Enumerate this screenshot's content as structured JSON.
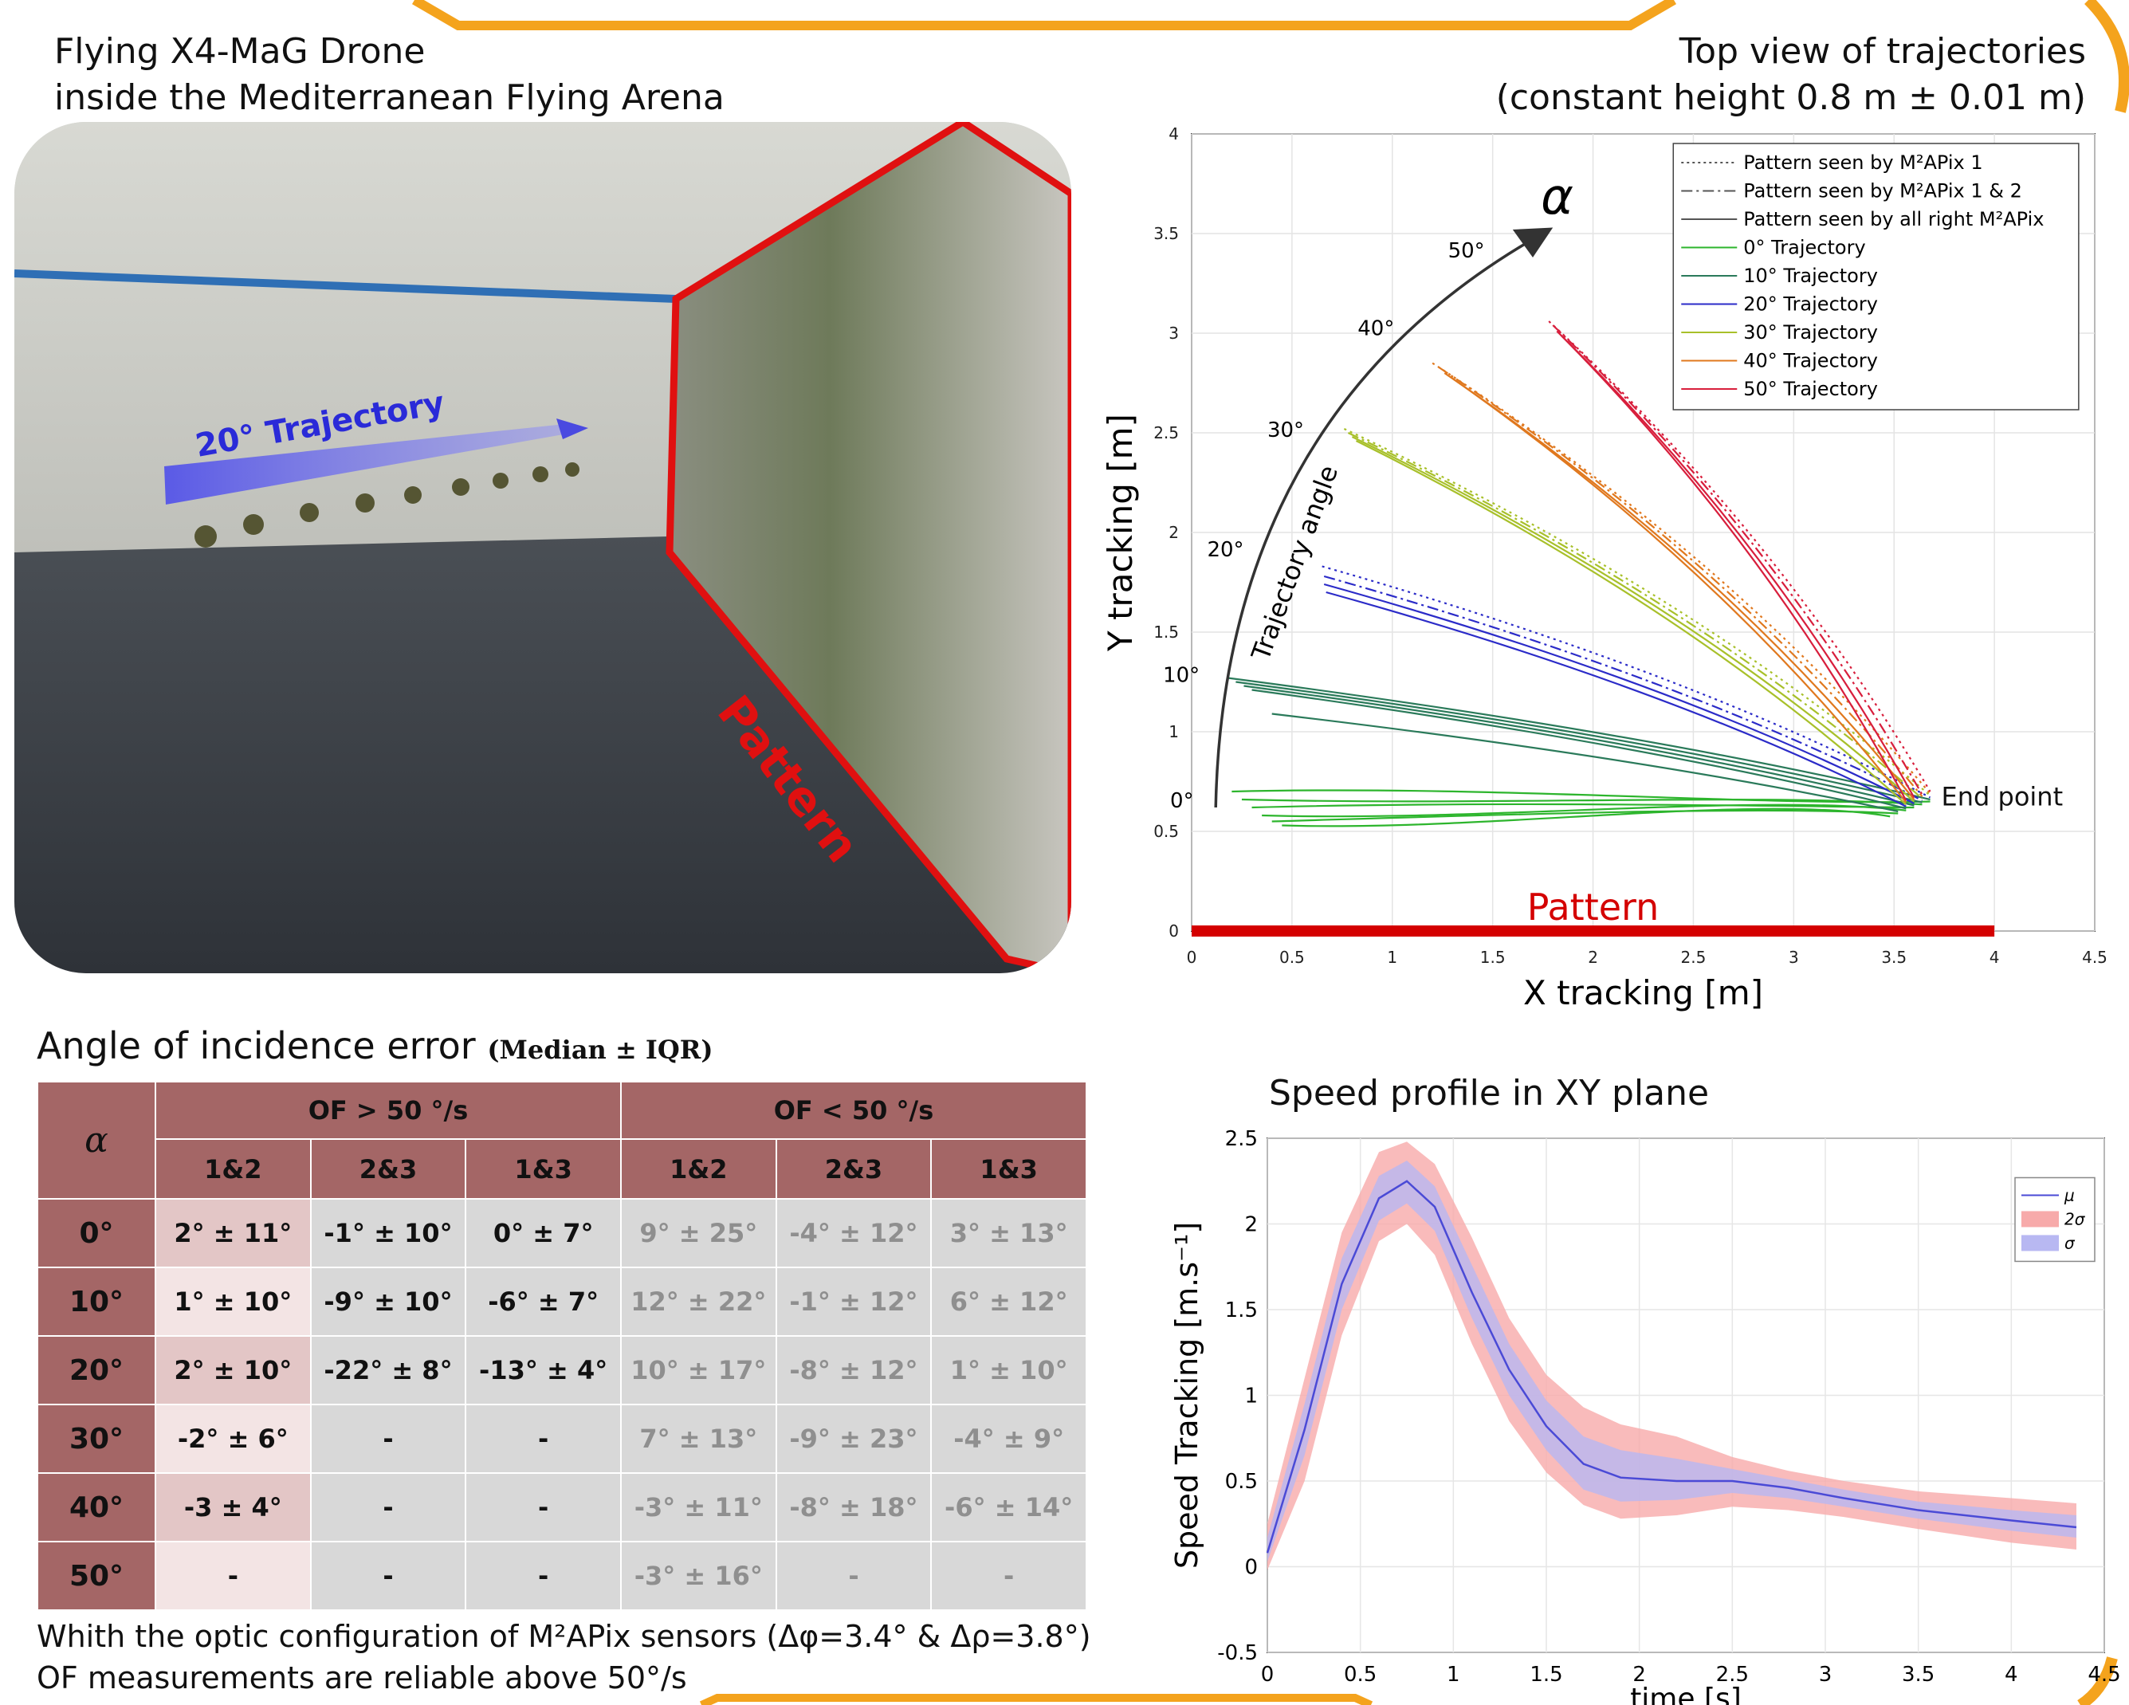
{
  "header": {
    "left_line1": "Flying X4-MaG Drone",
    "left_line2": "inside the Mediterranean Flying Arena",
    "right_line1": "Top view of trajectories",
    "right_line2": "(constant height 0.8 m ± 0.01 m)"
  },
  "photo": {
    "trajectory_label": "20° Trajectory",
    "pattern_label": "Pattern"
  },
  "table": {
    "title": "Angle of incidence error",
    "subtitle": "(Median ± IQR)",
    "alpha_header": "α",
    "group_high": "OF > 50 °/s",
    "group_low": "OF < 50 °/s",
    "columns": [
      "1&2",
      "2&3",
      "1&3",
      "1&2",
      "2&3",
      "1&3"
    ],
    "rows": [
      {
        "angle": "0°",
        "cells": [
          "2° ± 11°",
          "-1° ± 10°",
          "0° ± 7°",
          "9° ± 25°",
          "-4° ± 12°",
          "3° ± 13°"
        ]
      },
      {
        "angle": "10°",
        "cells": [
          "1° ± 10°",
          "-9° ± 10°",
          "-6° ± 7°",
          "12° ± 22°",
          "-1° ± 12°",
          "6° ± 12°"
        ]
      },
      {
        "angle": "20°",
        "cells": [
          "2° ± 10°",
          "-22° ± 8°",
          "-13° ± 4°",
          "10° ± 17°",
          "-8° ± 12°",
          "1° ± 10°"
        ]
      },
      {
        "angle": "30°",
        "cells": [
          "-2° ± 6°",
          "-",
          "-",
          "7° ± 13°",
          "-9° ± 23°",
          "-4° ± 9°"
        ]
      },
      {
        "angle": "40°",
        "cells": [
          "-3 ± 4°",
          "-",
          "-",
          "-3° ± 11°",
          "-8° ± 18°",
          "-6° ± 14°"
        ]
      },
      {
        "angle": "50°",
        "cells": [
          "-",
          "-",
          "-",
          "-3° ± 16°",
          "-",
          "-"
        ]
      }
    ],
    "note_line1": "Whith the optic configuration of M²APix sensors (Δφ=3.4°  & Δρ=3.8°)",
    "note_line2": "OF measurements are reliable above 50°/s"
  },
  "chart_data": [
    {
      "type": "line",
      "title": "Top view of trajectories",
      "subtitle": "(constant height 0.8 m ± 0.01 m)",
      "xlabel": "X tracking [m]",
      "ylabel": "Y tracking [m]",
      "xlim": [
        0,
        4.5
      ],
      "ylim": [
        0,
        4
      ],
      "xticks": [
        "0",
        "0.5",
        "1",
        "1.5",
        "2",
        "2.5",
        "3",
        "3.5",
        "4",
        "4.5"
      ],
      "yticks": [
        "0",
        "0.5",
        "1",
        "1.5",
        "2",
        "2.5",
        "3",
        "3.5",
        "4"
      ],
      "grid": true,
      "legend_position": "top-right",
      "legend": [
        {
          "label": "Pattern seen by M²APix 1",
          "style": "dotted"
        },
        {
          "label": "Pattern seen by M²APix 1 & 2",
          "style": "dashdot"
        },
        {
          "label": "Pattern seen by all right M²APix",
          "style": "solid"
        },
        {
          "label": "0° Trajectory",
          "color": "#2db52d"
        },
        {
          "label": "10° Trajectory",
          "color": "#2a7a5a"
        },
        {
          "label": "20° Trajectory",
          "color": "#2b2bc8"
        },
        {
          "label": "30° Trajectory",
          "color": "#a8c02a"
        },
        {
          "label": "40° Trajectory",
          "color": "#e0781e"
        },
        {
          "label": "50° Trajectory",
          "color": "#d81e3c"
        }
      ],
      "annotations": {
        "alpha_symbol": "α",
        "arc_label": "Trajectory angle",
        "arc_ticks": [
          "0°",
          "10°",
          "20°",
          "30°",
          "40°",
          "50°"
        ],
        "end_point": "End point",
        "pattern": "Pattern"
      },
      "pattern_bar": {
        "x": [
          0,
          4
        ],
        "y": 0
      },
      "end_point": [
        3.68,
        0.65
      ],
      "trajectories": [
        {
          "angle": "0°",
          "color": "#2db52d",
          "start_y": [
            0.7,
            0.66,
            0.62,
            0.58,
            0.55,
            0.53
          ],
          "start_x": [
            0.2,
            0.25,
            0.3,
            0.35,
            0.4,
            0.45
          ]
        },
        {
          "angle": "10°",
          "color": "#2a7a5a",
          "start_y": [
            1.27,
            1.25,
            1.23,
            1.21,
            1.09
          ],
          "start_x": [
            0.18,
            0.22,
            0.26,
            0.3,
            0.4
          ]
        },
        {
          "angle": "20°",
          "color": "#2b2bc8",
          "start_y": [
            1.83,
            1.78,
            1.74,
            1.7
          ],
          "start_x": [
            0.65,
            0.66,
            0.66,
            0.67
          ]
        },
        {
          "angle": "30°",
          "color": "#a8c02a",
          "start_y": [
            2.52,
            2.5,
            2.48,
            2.46
          ],
          "start_x": [
            0.76,
            0.78,
            0.8,
            0.82
          ]
        },
        {
          "angle": "40°",
          "color": "#e0781e",
          "start_y": [
            2.85,
            2.83,
            2.8,
            2.78
          ],
          "start_x": [
            1.2,
            1.23,
            1.26,
            1.29
          ]
        },
        {
          "angle": "50°",
          "color": "#d81e3c",
          "start_y": [
            3.06,
            3.04,
            3.01,
            2.99
          ],
          "start_x": [
            1.78,
            1.8,
            1.82,
            1.84
          ]
        }
      ]
    },
    {
      "type": "area",
      "title": "Speed profile in XY plane",
      "xlabel": "time [s]",
      "ylabel": "Speed Tracking [m.s⁻¹]",
      "xlim": [
        0,
        4.5
      ],
      "ylim": [
        -0.5,
        2.5
      ],
      "xticks": [
        "0",
        "0.5",
        "1",
        "1.5",
        "2",
        "2.5",
        "3",
        "3.5",
        "4",
        "4.5"
      ],
      "yticks": [
        "-0.5",
        "0",
        "0.5",
        "1",
        "1.5",
        "2",
        "2.5"
      ],
      "grid": true,
      "legend_position": "top-right",
      "series": [
        {
          "name": "μ",
          "color": "#4a4ad6",
          "x": [
            0,
            0.2,
            0.4,
            0.6,
            0.75,
            0.9,
            1.1,
            1.3,
            1.5,
            1.7,
            1.9,
            2.2,
            2.5,
            2.8,
            3.1,
            3.5,
            4.0,
            4.35
          ],
          "values": [
            0.08,
            0.8,
            1.65,
            2.15,
            2.25,
            2.1,
            1.6,
            1.15,
            0.82,
            0.6,
            0.52,
            0.5,
            0.5,
            0.46,
            0.4,
            0.33,
            0.27,
            0.23
          ]
        },
        {
          "name": "2σ",
          "color": "#f7aaaa",
          "upper": [
            0.25,
            1.1,
            1.95,
            2.42,
            2.48,
            2.35,
            1.92,
            1.45,
            1.12,
            0.93,
            0.83,
            0.76,
            0.64,
            0.56,
            0.5,
            0.44,
            0.4,
            0.37
          ],
          "lower": [
            -0.02,
            0.5,
            1.35,
            1.9,
            2.0,
            1.82,
            1.3,
            0.85,
            0.55,
            0.36,
            0.28,
            0.3,
            0.35,
            0.33,
            0.29,
            0.22,
            0.14,
            0.1
          ]
        },
        {
          "name": "σ",
          "color": "#b8b8f2",
          "upper": [
            0.17,
            0.95,
            1.8,
            2.28,
            2.37,
            2.22,
            1.76,
            1.3,
            0.97,
            0.76,
            0.68,
            0.63,
            0.57,
            0.51,
            0.45,
            0.38,
            0.33,
            0.3
          ],
          "lower": [
            0.03,
            0.65,
            1.5,
            2.02,
            2.12,
            1.96,
            1.45,
            1.0,
            0.68,
            0.45,
            0.38,
            0.39,
            0.43,
            0.4,
            0.35,
            0.28,
            0.21,
            0.17
          ]
        }
      ]
    }
  ]
}
